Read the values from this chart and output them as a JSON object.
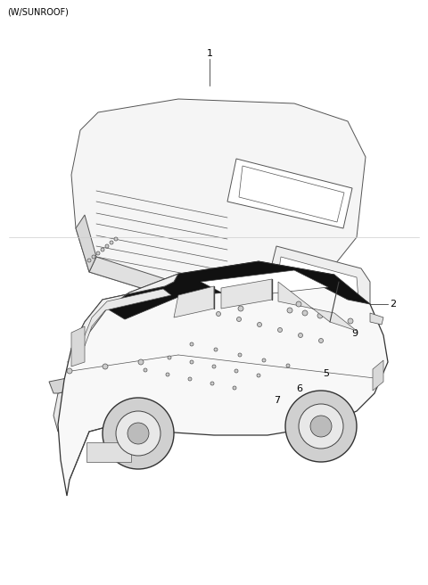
{
  "background_color": "#ffffff",
  "text_color": "#000000",
  "header_text": "(W/SUNROOF)",
  "figsize": [
    4.8,
    6.56
  ],
  "dpi": 100,
  "line_color": "#555555",
  "lw": 0.7
}
